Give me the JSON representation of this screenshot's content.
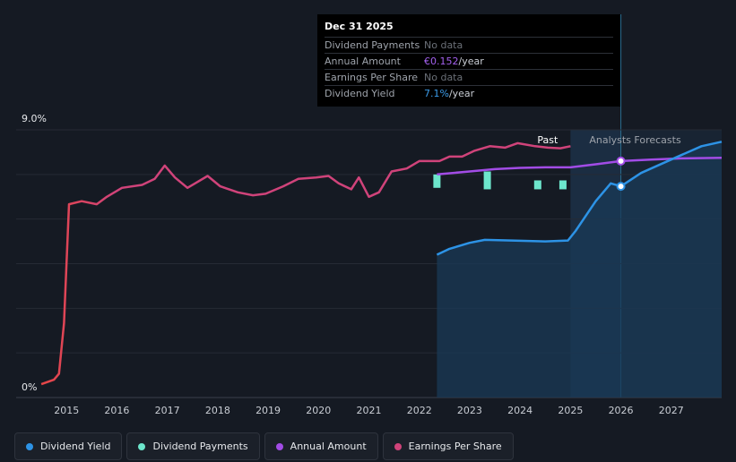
{
  "chart_data": {
    "type": "line",
    "y_axis": {
      "min_label": "0%",
      "max_label": "9.0%",
      "ylim": [
        0,
        9.0
      ]
    },
    "x_ticks": [
      "2015",
      "2016",
      "2017",
      "2018",
      "2019",
      "2020",
      "2021",
      "2022",
      "2023",
      "2024",
      "2025",
      "2026",
      "2027"
    ],
    "xlim": [
      2014.0,
      2028.0
    ],
    "grid": true,
    "regions": {
      "past_label": "Past",
      "forecast_label": "Analysts Forecasts",
      "boundary_x": 2025.0,
      "cursor_x": 2026.0
    },
    "series": [
      {
        "name": "Dividend Yield",
        "color": "#2d93e6",
        "fill": true,
        "points": [
          [
            2022.35,
            4.8
          ],
          [
            2022.6,
            5.0
          ],
          [
            2023.0,
            5.2
          ],
          [
            2023.3,
            5.3
          ],
          [
            2024.0,
            5.27
          ],
          [
            2024.5,
            5.25
          ],
          [
            2024.95,
            5.28
          ],
          [
            2025.1,
            5.6
          ],
          [
            2025.5,
            6.6
          ],
          [
            2025.8,
            7.2
          ],
          [
            2026.0,
            7.1
          ],
          [
            2026.4,
            7.55
          ],
          [
            2026.8,
            7.85
          ],
          [
            2027.2,
            8.15
          ],
          [
            2027.6,
            8.45
          ],
          [
            2028.0,
            8.6
          ]
        ]
      },
      {
        "name": "Dividend Payments",
        "color": "#6de6cc",
        "bars": [
          [
            2022.35,
            7.05,
            7.5
          ],
          [
            2023.35,
            7.0,
            7.6
          ],
          [
            2024.35,
            7.0,
            7.3
          ],
          [
            2024.85,
            7.0,
            7.3
          ]
        ]
      },
      {
        "name": "Annual Amount",
        "color": "#a24ce6",
        "points": [
          [
            2022.35,
            7.5
          ],
          [
            2023.0,
            7.6
          ],
          [
            2023.5,
            7.68
          ],
          [
            2024.0,
            7.72
          ],
          [
            2024.5,
            7.74
          ],
          [
            2025.0,
            7.74
          ],
          [
            2025.5,
            7.84
          ],
          [
            2026.0,
            7.95
          ],
          [
            2026.6,
            8.0
          ],
          [
            2027.2,
            8.04
          ],
          [
            2028.0,
            8.06
          ]
        ]
      },
      {
        "name": "Earnings Per Share",
        "color": "#d0437a",
        "line_colors": [
          "#e64646",
          "#d0437a"
        ],
        "points": [
          [
            2014.5,
            0.45
          ],
          [
            2014.75,
            0.6
          ],
          [
            2014.85,
            0.8
          ],
          [
            2014.95,
            2.5
          ],
          [
            2015.05,
            6.5
          ],
          [
            2015.3,
            6.6
          ],
          [
            2015.6,
            6.5
          ],
          [
            2015.8,
            6.75
          ],
          [
            2016.1,
            7.05
          ],
          [
            2016.5,
            7.15
          ],
          [
            2016.75,
            7.35
          ],
          [
            2016.95,
            7.8
          ],
          [
            2017.15,
            7.4
          ],
          [
            2017.4,
            7.05
          ],
          [
            2017.55,
            7.2
          ],
          [
            2017.8,
            7.45
          ],
          [
            2018.05,
            7.1
          ],
          [
            2018.4,
            6.9
          ],
          [
            2018.7,
            6.8
          ],
          [
            2018.95,
            6.85
          ],
          [
            2019.3,
            7.1
          ],
          [
            2019.6,
            7.35
          ],
          [
            2019.95,
            7.4
          ],
          [
            2020.2,
            7.45
          ],
          [
            2020.4,
            7.2
          ],
          [
            2020.65,
            7.0
          ],
          [
            2020.8,
            7.4
          ],
          [
            2021.0,
            6.75
          ],
          [
            2021.2,
            6.9
          ],
          [
            2021.45,
            7.6
          ],
          [
            2021.75,
            7.7
          ],
          [
            2022.0,
            7.95
          ],
          [
            2022.4,
            7.95
          ],
          [
            2022.6,
            8.1
          ],
          [
            2022.85,
            8.1
          ],
          [
            2023.1,
            8.3
          ],
          [
            2023.4,
            8.45
          ],
          [
            2023.7,
            8.4
          ],
          [
            2023.95,
            8.55
          ],
          [
            2024.3,
            8.45
          ],
          [
            2024.55,
            8.4
          ],
          [
            2024.8,
            8.38
          ],
          [
            2025.0,
            8.45
          ]
        ]
      }
    ]
  },
  "tooltip": {
    "date": "Dec 31 2025",
    "rows": [
      {
        "key": "Dividend Payments",
        "value": "No data",
        "unit": ""
      },
      {
        "key": "Annual Amount",
        "value": "€0.152",
        "unit": "/year"
      },
      {
        "key": "Earnings Per Share",
        "value": "No data",
        "unit": ""
      },
      {
        "key": "Dividend Yield",
        "value": "7.1%",
        "unit": "/year"
      }
    ]
  },
  "legend": [
    {
      "label": "Dividend Yield",
      "color": "#2d93e6"
    },
    {
      "label": "Dividend Payments",
      "color": "#6de6cc"
    },
    {
      "label": "Annual Amount",
      "color": "#a24ce6"
    },
    {
      "label": "Earnings Per Share",
      "color": "#d0437a"
    }
  ],
  "colors": {
    "background": "#151a23",
    "grid": "#262b35",
    "forecast_band": "#1b2e42",
    "cursor": "#2a6d8f"
  }
}
